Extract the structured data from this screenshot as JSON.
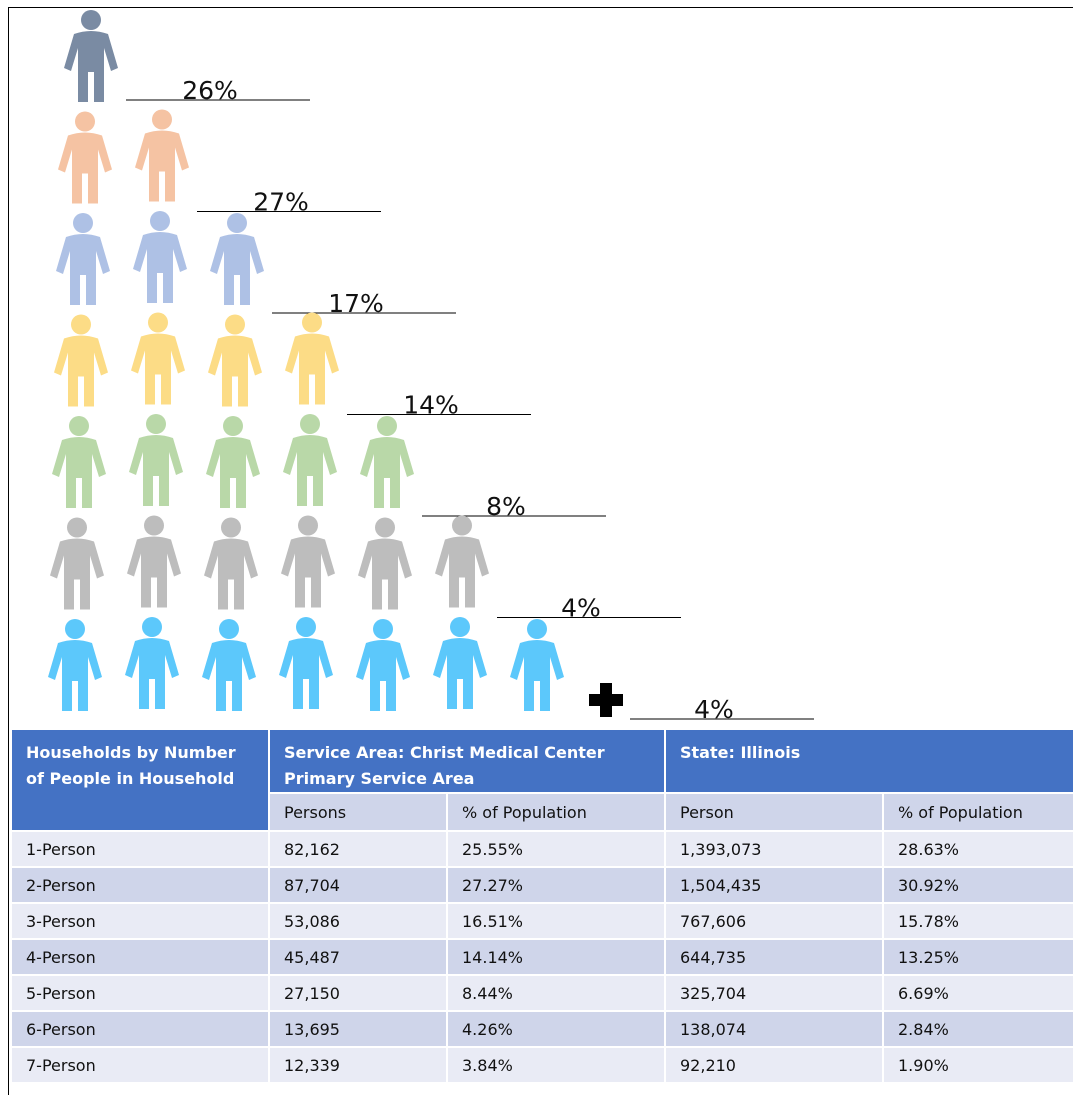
{
  "pictogram": {
    "rows": [
      {
        "count": 1,
        "color": "#7a8ba3",
        "label": "26%"
      },
      {
        "count": 2,
        "color": "#f5c3a3",
        "label": "27%"
      },
      {
        "count": 3,
        "color": "#aec1e5",
        "label": "17%"
      },
      {
        "count": 4,
        "color": "#fcdc86",
        "label": "14%"
      },
      {
        "count": 5,
        "color": "#b9d8a8",
        "label": "8%"
      },
      {
        "count": 6,
        "color": "#bdbdbd",
        "label": "4%"
      },
      {
        "count": 7,
        "color": "#5cc8fb",
        "label": "4%",
        "plus": true
      }
    ]
  },
  "table": {
    "header": [
      "Households by Number of People in Household",
      "Service Area: Christ Medical Center Primary Service Area",
      "State: Illinois"
    ],
    "subheader": [
      "Persons",
      "% of Population",
      "Person",
      "% of Population"
    ],
    "rows": [
      [
        "1-Person",
        "82,162",
        "25.55%",
        "1,393,073",
        "28.63%"
      ],
      [
        "2-Person",
        "87,704",
        "27.27%",
        "1,504,435",
        "30.92%"
      ],
      [
        "3-Person",
        "53,086",
        "16.51%",
        "767,606",
        "15.78%"
      ],
      [
        "4-Person",
        "45,487",
        "14.14%",
        "644,735",
        "13.25%"
      ],
      [
        "5-Person",
        "27,150",
        "8.44%",
        "325,704",
        "6.69%"
      ],
      [
        "6-Person",
        "13,695",
        "4.26%",
        "138,074",
        "2.84%"
      ],
      [
        "7-Person",
        "12,339",
        "3.84%",
        "92,210",
        "1.90%"
      ]
    ]
  }
}
